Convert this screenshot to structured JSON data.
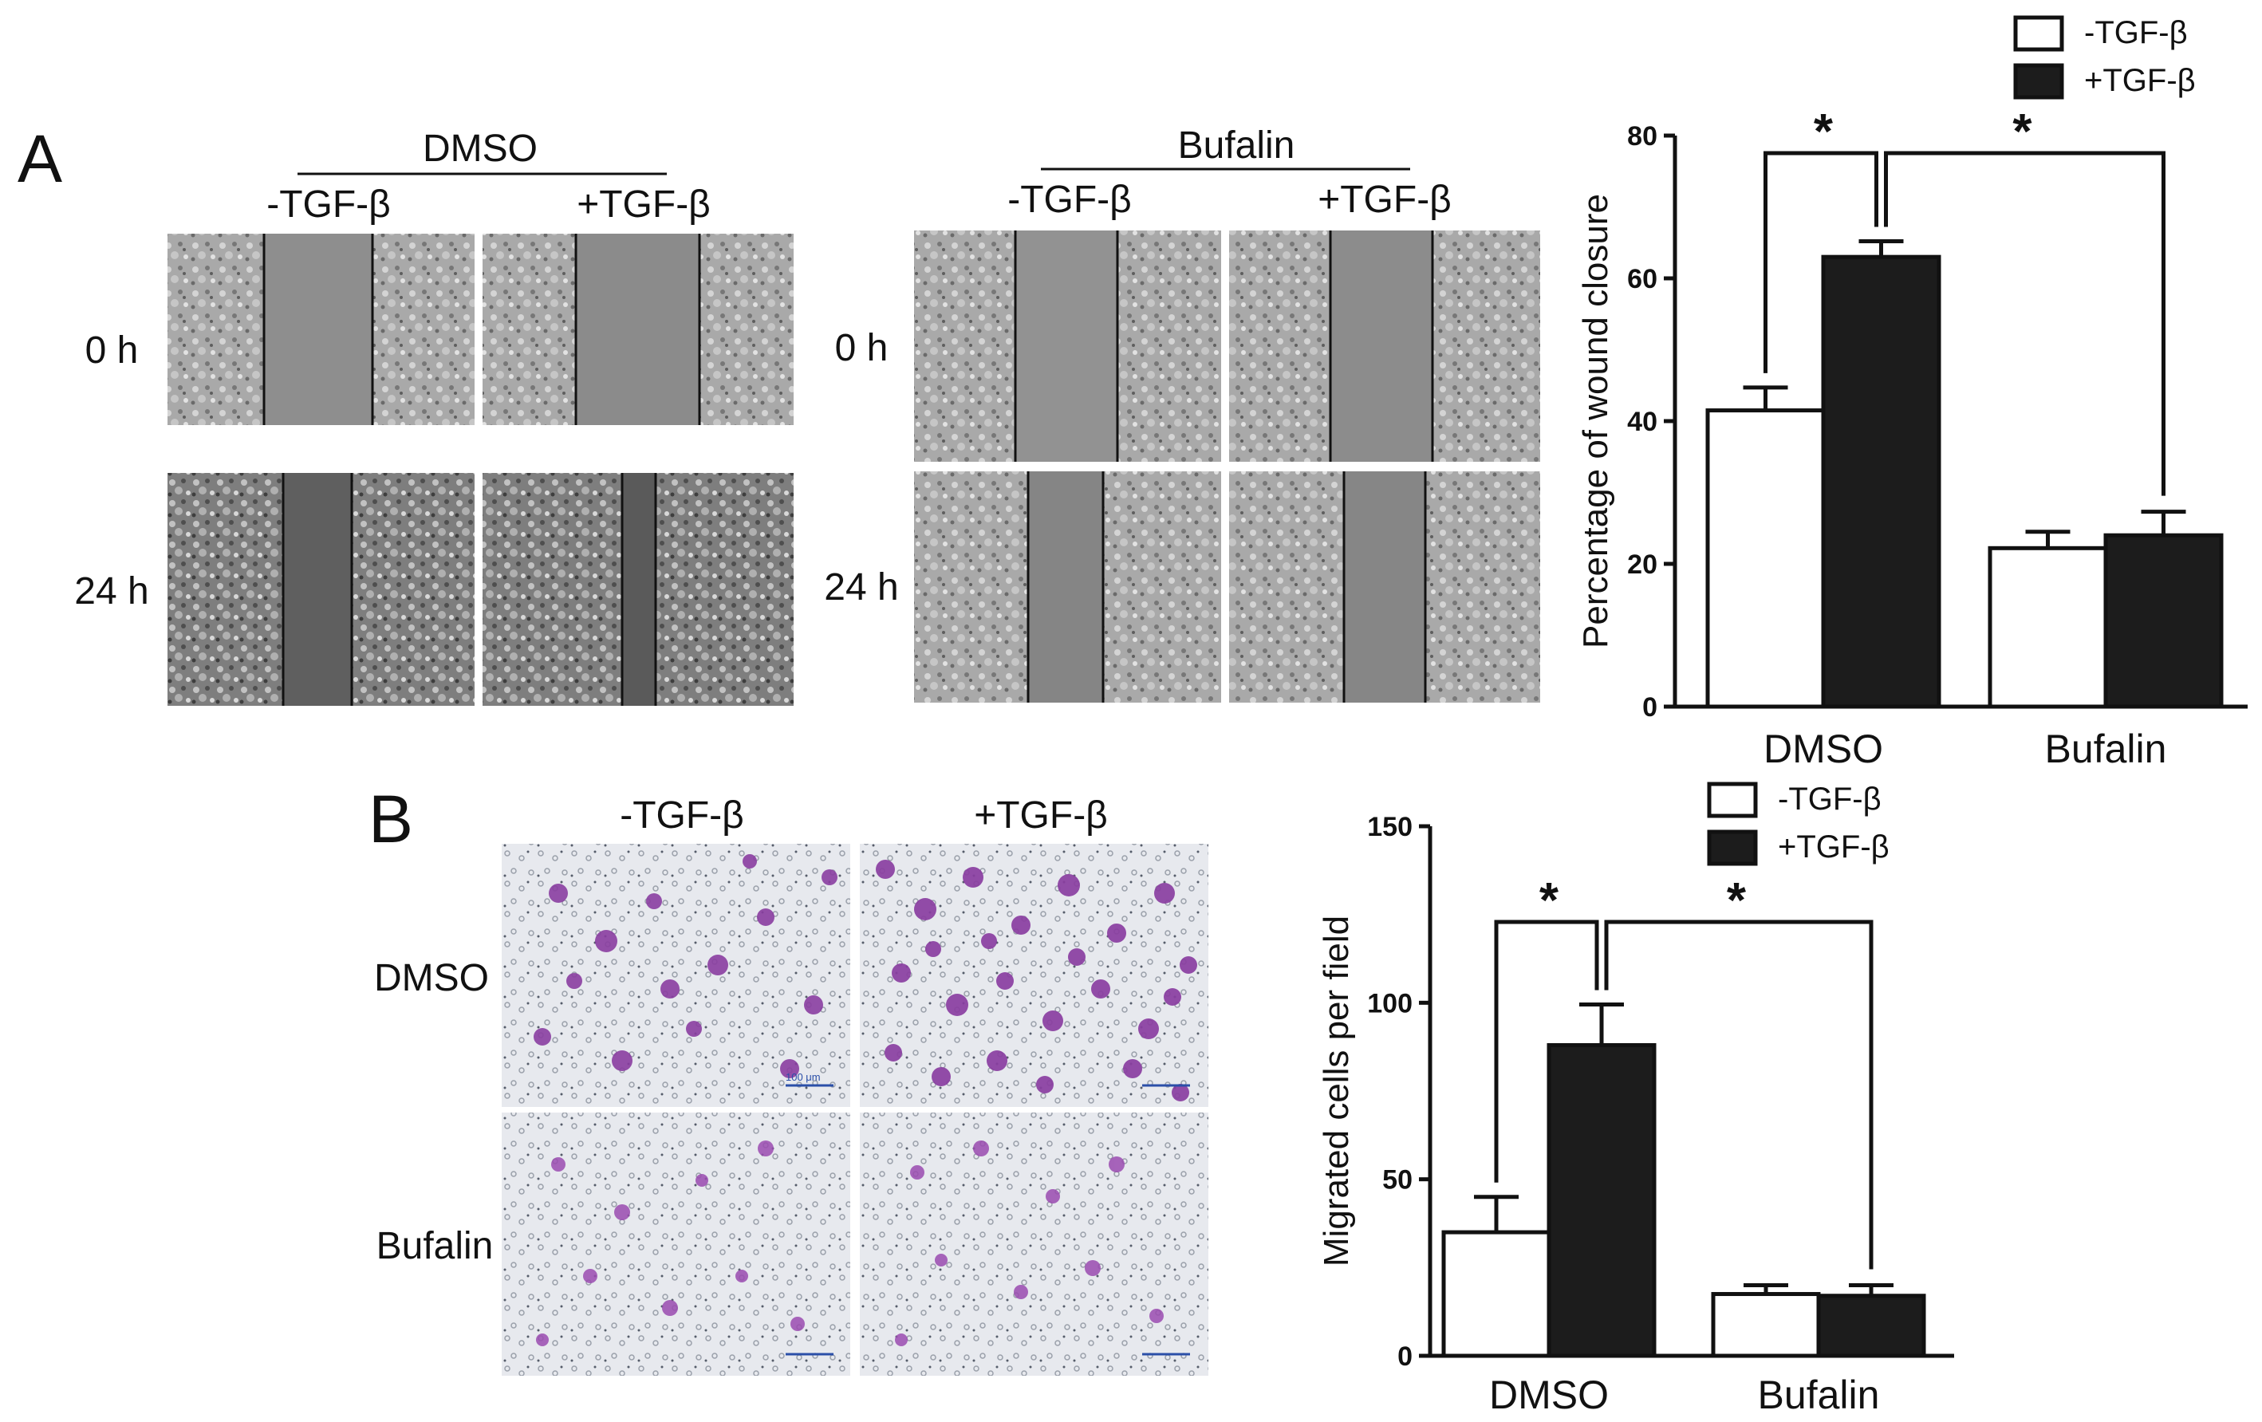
{
  "figure": {
    "panel_a": {
      "letter": "A",
      "groups": [
        {
          "title": "DMSO",
          "conditions": [
            "-TGF-β",
            "+TGF-β"
          ]
        },
        {
          "title": "Bufalin",
          "conditions": [
            "-TGF-β",
            "+TGF-β"
          ]
        }
      ],
      "rows": [
        "0 h",
        "24 h"
      ]
    },
    "panel_b": {
      "letter": "B",
      "conditions": [
        "-TGF-β",
        "+TGF-β"
      ],
      "rows": [
        "DMSO",
        "Bufalin"
      ],
      "scale_bar": "100 μm"
    }
  },
  "chart_data": [
    {
      "type": "bar",
      "ylabel": "Percentage of wound closure",
      "categories": [
        "DMSO",
        "Bufalin"
      ],
      "ylim": [
        0,
        80
      ],
      "yticks": [
        0,
        20,
        40,
        60,
        80
      ],
      "series": [
        {
          "name": "-TGF-β",
          "values": [
            41.5,
            22.2
          ],
          "errors": [
            3.2,
            2.3
          ],
          "color": "#ffffff"
        },
        {
          "name": "+TGF-β",
          "values": [
            63.0,
            24.0
          ],
          "errors": [
            2.2,
            3.3
          ],
          "color": "#1c1c1c"
        }
      ],
      "significance": [
        "*",
        "*"
      ],
      "legend": "top-right"
    },
    {
      "type": "bar",
      "ylabel": "Migrated cells per field",
      "categories": [
        "DMSO",
        "Bufalin"
      ],
      "ylim": [
        0,
        150
      ],
      "yticks": [
        0,
        50,
        100,
        150
      ],
      "series": [
        {
          "name": "-TGF-β",
          "values": [
            35,
            17.5
          ],
          "errors": [
            10,
            2.5
          ],
          "color": "#ffffff"
        },
        {
          "name": "+TGF-β",
          "values": [
            88,
            17
          ],
          "errors": [
            11.5,
            3
          ],
          "color": "#1c1c1c"
        }
      ],
      "significance": [
        "*",
        "*"
      ],
      "legend": "top"
    }
  ]
}
